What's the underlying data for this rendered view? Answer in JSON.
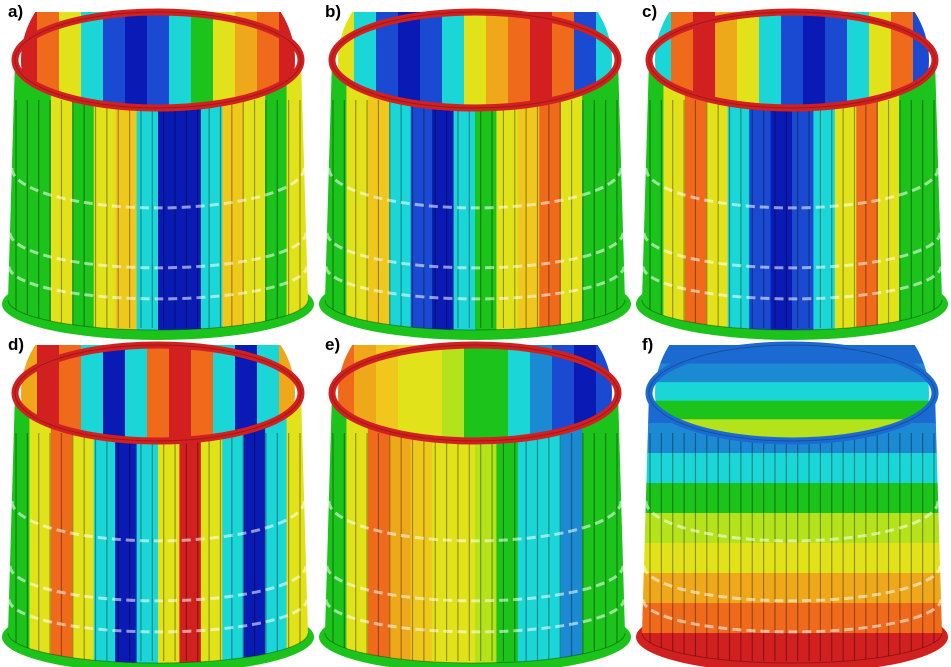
{
  "panels": [
    {
      "id": "a",
      "label": "a)",
      "pattern": "vertical",
      "colors": [
        "#1bc31b",
        "#1bc31b",
        "#e2e21b",
        "#1bc31b",
        "#e2e21b",
        "#f0c81b",
        "#1bd6d6",
        "#0a1ab4",
        "#0a1ab4",
        "#1bd6d6",
        "#f0c81b",
        "#e2e21b",
        "#1bc31b",
        "#e2e21b"
      ],
      "inner": [
        "#d22020",
        "#f06a1b",
        "#e2e21b",
        "#1bd6d6",
        "#1b4ad2",
        "#0a1ab4",
        "#1b4ad2",
        "#1bd6d6",
        "#1bc31b",
        "#e2e21b",
        "#f0a81b",
        "#f06a1b",
        "#d22020"
      ]
    },
    {
      "id": "b",
      "label": "b)",
      "pattern": "vertical",
      "colors": [
        "#1bc31b",
        "#e2e21b",
        "#f0c81b",
        "#1bd6d6",
        "#1b4ad2",
        "#0a1ab4",
        "#1bd6d6",
        "#1bc31b",
        "#e2e21b",
        "#f0c81b",
        "#f06a1b",
        "#e2e21b",
        "#1bc31b",
        "#1bc31b"
      ],
      "inner": [
        "#e2e21b",
        "#1bd6d6",
        "#1b4ad2",
        "#0a1ab4",
        "#1b4ad2",
        "#1bd6d6",
        "#e2e21b",
        "#f0a81b",
        "#f06a1b",
        "#d22020",
        "#f06a1b",
        "#1b4ad2",
        "#1bd6d6"
      ]
    },
    {
      "id": "c",
      "label": "c)",
      "pattern": "vertical",
      "colors": [
        "#1bc31b",
        "#e2e21b",
        "#f06a1b",
        "#e2e21b",
        "#1bd6d6",
        "#1b4ad2",
        "#0a1ab4",
        "#1b4ad2",
        "#1bd6d6",
        "#e2e21b",
        "#f06a1b",
        "#e2e21b",
        "#1bc31b",
        "#1bc31b"
      ],
      "inner": [
        "#1bd6d6",
        "#f06a1b",
        "#d22020",
        "#f0a81b",
        "#e2e21b",
        "#1bd6d6",
        "#1b4ad2",
        "#0a1ab4",
        "#1b4ad2",
        "#1bd6d6",
        "#e2e21b",
        "#f06a1b",
        "#1b4ad2"
      ]
    },
    {
      "id": "d",
      "label": "d)",
      "pattern": "vertical",
      "colors": [
        "#1bc31b",
        "#e2e21b",
        "#f06a1b",
        "#e2e21b",
        "#1bd6d6",
        "#0a1ab4",
        "#1bd6d6",
        "#e2e21b",
        "#d22020",
        "#e2e21b",
        "#1bd6d6",
        "#0a1ab4",
        "#1bd6d6",
        "#e2e21b"
      ],
      "inner": [
        "#f0a81b",
        "#d22020",
        "#f06a1b",
        "#1bd6d6",
        "#0a1ab4",
        "#1bd6d6",
        "#f06a1b",
        "#d22020",
        "#f06a1b",
        "#1bd6d6",
        "#0a1ab4",
        "#1bd6d6",
        "#f0a81b"
      ]
    },
    {
      "id": "e",
      "label": "e)",
      "pattern": "vertical",
      "colors": [
        "#1bc31b",
        "#e2e21b",
        "#f06a1b",
        "#f0a81b",
        "#f0c81b",
        "#e2e21b",
        "#e2e21b",
        "#b4e21b",
        "#1bc31b",
        "#1bd6d6",
        "#1bd6d6",
        "#1b8ad2",
        "#1bc31b",
        "#1bc31b"
      ],
      "inner": [
        "#f06a1b",
        "#f0a81b",
        "#f0c81b",
        "#e2e21b",
        "#e2e21b",
        "#b4e21b",
        "#1bc31b",
        "#1bc31b",
        "#1bd6d6",
        "#1b8ad2",
        "#1b4ad2",
        "#0a1ab4",
        "#1b4ad2"
      ]
    },
    {
      "id": "f",
      "label": "f)",
      "pattern": "horizontal",
      "colors": [
        "#1b6ad2",
        "#1b8ad2",
        "#1bd6d6",
        "#1bc31b",
        "#b4e21b",
        "#e2e21b",
        "#f0a81b",
        "#f06a1b",
        "#d22020"
      ],
      "inner": [
        "#1b6ad2",
        "#1b8ad2",
        "#1bd6d6",
        "#1bc31b",
        "#b4e21b",
        "#e2e21b",
        "#f0c81b"
      ]
    }
  ]
}
